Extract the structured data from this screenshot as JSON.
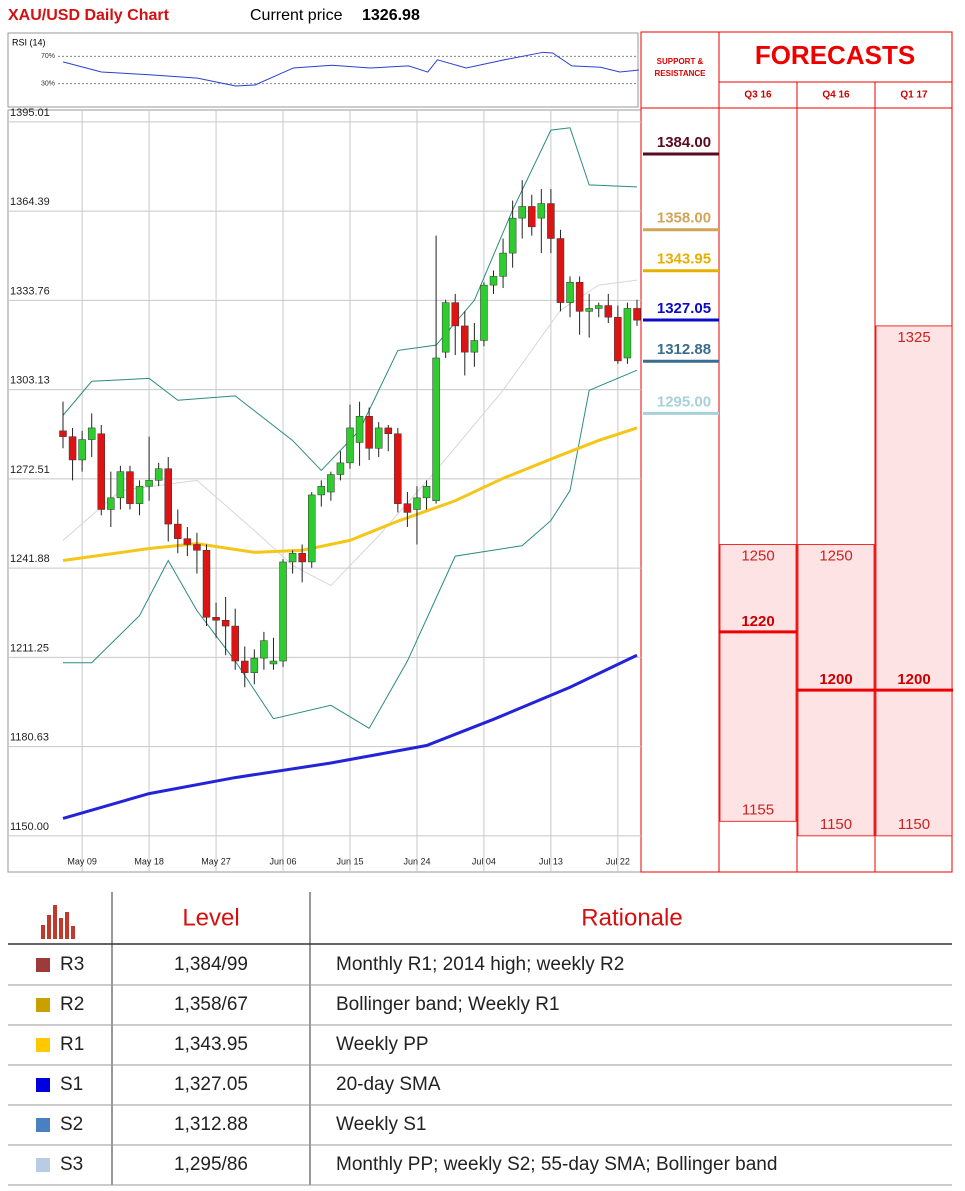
{
  "header": {
    "title": "XAU/USD Daily Chart",
    "price_label": "Current price",
    "price": 1326.98
  },
  "chart_data": [
    {
      "type": "line",
      "title": "RSI (14)",
      "x": [
        0,
        4,
        9,
        14,
        18,
        20,
        24,
        28,
        32,
        36,
        38,
        39,
        42,
        46,
        50,
        51,
        53,
        56,
        58,
        60
      ],
      "series": [
        {
          "color": "#2a3fd0",
          "values": [
            62,
            47,
            43,
            38,
            26.5,
            28,
            53,
            57,
            53,
            56,
            47,
            65,
            53,
            65,
            76,
            75,
            56,
            54,
            47,
            50
          ]
        }
      ],
      "xlim": [
        0,
        60
      ],
      "ylim": [
        0,
        100
      ],
      "yticks": [
        {
          "value": 70,
          "label": "70%"
        },
        {
          "value": 30,
          "label": "30%"
        }
      ]
    },
    {
      "type": "candlestick",
      "categories": [
        null,
        null,
        "May 09",
        null,
        null,
        null,
        null,
        null,
        null,
        "May 18",
        null,
        null,
        null,
        null,
        null,
        null,
        "May 27",
        null,
        null,
        null,
        null,
        null,
        null,
        "Jun 06",
        null,
        null,
        null,
        null,
        null,
        null,
        "Jun 15",
        null,
        null,
        null,
        null,
        null,
        null,
        "Jun 24",
        null,
        null,
        null,
        null,
        null,
        null,
        "Jul 04",
        null,
        null,
        null,
        null,
        null,
        null,
        "Jul 13",
        null,
        null,
        null,
        null,
        null,
        null,
        "Jul 22",
        null,
        null
      ],
      "open": [
        1289,
        1287,
        1279,
        1286,
        1288,
        1262,
        1266,
        1275,
        1264,
        1270,
        1272,
        1276,
        1257,
        1252,
        1250,
        1248,
        1225,
        1224,
        1222,
        1210,
        1206,
        1211,
        1209,
        1210,
        1244,
        1247,
        1244,
        1267,
        1268,
        1274,
        1278,
        1285,
        1294,
        1283,
        1290,
        1288,
        1264,
        1262,
        1266,
        1265,
        1316,
        1333,
        1325,
        1316,
        1320,
        1339,
        1342,
        1350,
        1362,
        1366,
        1362,
        1367,
        1355,
        1333,
        1340,
        1330,
        1331,
        1332,
        1328,
        1314,
        1331
      ],
      "high": [
        1299,
        1290,
        1289,
        1295,
        1291,
        1275,
        1277,
        1277,
        1272,
        1287,
        1278,
        1280,
        1262,
        1256,
        1254,
        1250,
        1230,
        1232,
        1228,
        1215,
        1214,
        1220,
        1218,
        1245,
        1248,
        1250,
        1268,
        1272,
        1275,
        1282,
        1298,
        1299,
        1297,
        1292,
        1291,
        1290,
        1268,
        1270,
        1272,
        1356,
        1334,
        1336,
        1330,
        1326,
        1340,
        1344,
        1355,
        1368,
        1375,
        1370,
        1372,
        1372,
        1358,
        1342,
        1342,
        1336,
        1333,
        1336,
        1332,
        1333,
        1334
      ],
      "low": [
        1283,
        1272,
        1275,
        1280,
        1260,
        1256,
        1262,
        1262,
        1260,
        1265,
        1270,
        1251,
        1247,
        1246,
        1240,
        1222,
        1218,
        1212,
        1207,
        1201,
        1202,
        1207,
        1207,
        1208,
        1240,
        1237,
        1242,
        1263,
        1265,
        1272,
        1276,
        1277,
        1279,
        1280,
        1282,
        1261,
        1256,
        1250,
        1262,
        1264,
        1314,
        1315,
        1308,
        1311,
        1318,
        1336,
        1338,
        1345,
        1355,
        1356,
        1350,
        1350,
        1330,
        1328,
        1322,
        1321,
        1328,
        1326,
        1312,
        1312,
        1325
      ],
      "close": [
        1287,
        1279,
        1286,
        1290,
        1262,
        1266,
        1275,
        1264,
        1270,
        1272,
        1276,
        1257,
        1252,
        1250,
        1248,
        1225,
        1224,
        1222,
        1210,
        1206,
        1211,
        1217,
        1210,
        1244,
        1247,
        1244,
        1267,
        1270,
        1274,
        1278,
        1290,
        1294,
        1283,
        1290,
        1288,
        1264,
        1261,
        1266,
        1270,
        1314,
        1333,
        1325,
        1316,
        1320,
        1339,
        1342,
        1350,
        1362,
        1366,
        1359,
        1367,
        1355,
        1333,
        1340,
        1330,
        1331,
        1332,
        1328,
        1313,
        1331,
        1326.98
      ],
      "up_color": "#2ecc2e",
      "down_color": "#dd1414",
      "series": [
        {
          "color": "#d6d6d6",
          "width": 1,
          "x": [
            0,
            6,
            14,
            20,
            24,
            28,
            33,
            39,
            46,
            52,
            56,
            60
          ],
          "values": [
            1251.4,
            1268.5,
            1272,
            1254.8,
            1242.8,
            1235.9,
            1253,
            1275.4,
            1302.9,
            1330.4,
            1339,
            1340.7
          ]
        },
        {
          "color": "#2a8a80",
          "width": 1,
          "x": [
            0,
            3,
            9,
            12,
            18,
            24,
            27,
            31,
            35,
            39,
            43,
            47,
            51,
            53,
            55,
            60
          ],
          "values": [
            1294.3,
            1306,
            1307,
            1299.5,
            1301,
            1285.7,
            1275.4,
            1289.2,
            1316.6,
            1318.4,
            1333.8,
            1364.8,
            1392.2,
            1393,
            1373.4,
            1372.7
          ]
        },
        {
          "color": "#2a8a80",
          "width": 1,
          "x": [
            0,
            3,
            8,
            11,
            14,
            18,
            22,
            28,
            32,
            36,
            41,
            48,
            51,
            53,
            55,
            60
          ],
          "values": [
            1209.4,
            1209.4,
            1225.6,
            1244.5,
            1227.3,
            1210,
            1190.2,
            1194.8,
            1186.9,
            1210,
            1246,
            1249.6,
            1258.2,
            1268.5,
            1302.9,
            1309.8
          ]
        },
        {
          "color": "#f5c518",
          "width": 3,
          "x": [
            0,
            9,
            14,
            20,
            25,
            30,
            35,
            41,
            46,
            52,
            56,
            60
          ],
          "values": [
            1244.5,
            1248.6,
            1250.3,
            1247.3,
            1248,
            1251.4,
            1258,
            1265,
            1272.7,
            1280.6,
            1285.7,
            1290
          ]
        },
        {
          "color": "#2323d8",
          "width": 3,
          "x": [
            0,
            9,
            18,
            28,
            38,
            45,
            53,
            60
          ],
          "values": [
            1156,
            1164.5,
            1170,
            1175,
            1181,
            1190,
            1201,
            1212
          ]
        }
      ],
      "xlim": [
        0,
        60
      ],
      "ylim": [
        1137.6,
        1399.1
      ],
      "grid": true,
      "yticks": [
        1395.01,
        1364.39,
        1333.76,
        1303.13,
        1272.51,
        1241.88,
        1211.25,
        1180.63,
        {
          "value": 1150,
          "label": "1150.00"
        }
      ]
    }
  ],
  "support_resistance": {
    "title": [
      "SUPPORT &",
      "RESISTANCE"
    ],
    "levels": [
      {
        "value": 1384,
        "label": "1384.00",
        "color": "#5a0a1e"
      },
      {
        "value": 1358,
        "label": "1358.00",
        "color": "#d4a35a"
      },
      {
        "value": 1343.95,
        "label": "1343.95",
        "color": "#e6b000"
      },
      {
        "value": 1327.05,
        "label": "1327.05",
        "color": "#0a0ac8"
      },
      {
        "value": 1312.88,
        "label": "1312.88",
        "color": "#3a6d8f"
      },
      {
        "value": 1295,
        "label": "1295.00",
        "color": "#a8d0d8"
      }
    ]
  },
  "forecasts": {
    "title": "FORECASTS",
    "periods": [
      {
        "name": "Q3 16",
        "high": 1250,
        "median": 1220,
        "low": 1155
      },
      {
        "name": "Q4 16",
        "high": 1250,
        "median": 1200,
        "low": 1150
      },
      {
        "name": "Q1 17",
        "high": 1325,
        "median": 1200,
        "low": 1150
      }
    ]
  },
  "table": {
    "header": [
      "Level",
      "Rationale"
    ],
    "rows": [
      {
        "label": "R3",
        "color": "#9e3a3a",
        "level": "1,384/99",
        "rationale": "Monthly R1; 2014 high; weekly R2"
      },
      {
        "label": "R2",
        "color": "#c8a000",
        "level": "1,358/67",
        "rationale": "Bollinger band; Weekly R1"
      },
      {
        "label": "R1",
        "color": "#ffc800",
        "level": "1,343.95",
        "rationale": "Weekly PP"
      },
      {
        "label": "S1",
        "color": "#0000dd",
        "level": "1,327.05",
        "rationale": "20-day SMA"
      },
      {
        "label": "S2",
        "color": "#4a7fc0",
        "level": "1,312.88",
        "rationale": "Weekly S1"
      },
      {
        "label": "S3",
        "color": "#b8cce4",
        "level": "1,295/86",
        "rationale": "Monthly PP; weekly S2; 55-day SMA; Bollinger band"
      }
    ]
  }
}
